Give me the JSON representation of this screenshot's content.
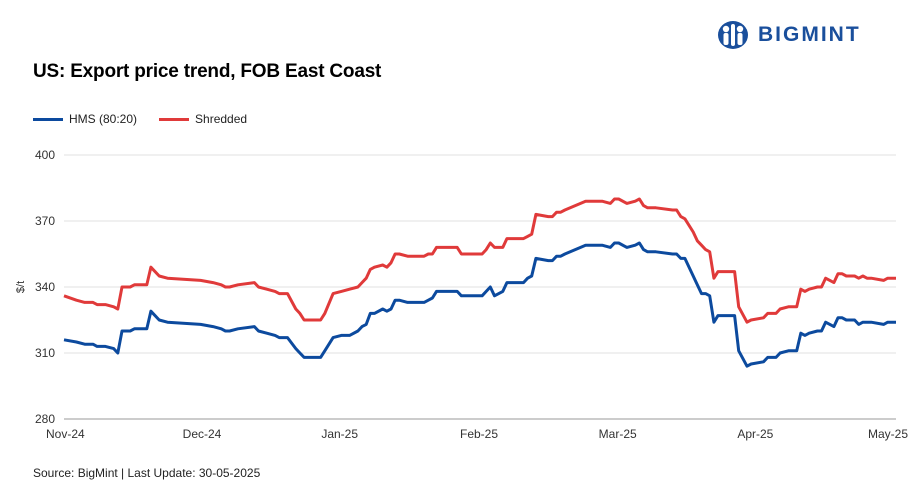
{
  "brand": {
    "name": "BIGMINT",
    "color": "#1a4f9c"
  },
  "chart_data": {
    "type": "line",
    "title": "US: Export price trend, FOB East Coast",
    "ylabel": "$/t",
    "xlabel": "",
    "ylim": [
      280,
      400
    ],
    "yticks": [
      "400",
      "370",
      "340",
      "310",
      "280"
    ],
    "xticks": [
      "Nov-24",
      "Dec-24",
      "Jan-25",
      "Feb-25",
      "Mar-25",
      "Apr-25",
      "May-25"
    ],
    "grid": "horizontal",
    "legend_position": "top-left",
    "series": [
      {
        "name": "HMS (80:20)",
        "color": "#0c4a9e",
        "points": [
          [
            0,
            316
          ],
          [
            3,
            315
          ],
          [
            5,
            314
          ],
          [
            7,
            314
          ],
          [
            8,
            313
          ],
          [
            10,
            313
          ],
          [
            12,
            312
          ],
          [
            13,
            310
          ],
          [
            14,
            320
          ],
          [
            16,
            320
          ],
          [
            17,
            321
          ],
          [
            20,
            321
          ],
          [
            21,
            329
          ],
          [
            23,
            325
          ],
          [
            25,
            324
          ],
          [
            33,
            323
          ],
          [
            36,
            322
          ],
          [
            38,
            321
          ],
          [
            39,
            320
          ],
          [
            40,
            320
          ],
          [
            42,
            321
          ],
          [
            46,
            322
          ],
          [
            47,
            320
          ],
          [
            49,
            319
          ],
          [
            51,
            318
          ],
          [
            52,
            317
          ],
          [
            54,
            317
          ],
          [
            56,
            312
          ],
          [
            57,
            310
          ],
          [
            58,
            308
          ],
          [
            62,
            308
          ],
          [
            63,
            311
          ],
          [
            65,
            317
          ],
          [
            67,
            318
          ],
          [
            69,
            318
          ],
          [
            71,
            320
          ],
          [
            72,
            322
          ],
          [
            73,
            323
          ],
          [
            74,
            328
          ],
          [
            75,
            328
          ],
          [
            77,
            330
          ],
          [
            78,
            329
          ],
          [
            79,
            330
          ],
          [
            80,
            334
          ],
          [
            81,
            334
          ],
          [
            83,
            333
          ],
          [
            85,
            333
          ],
          [
            87,
            333
          ],
          [
            88,
            334
          ],
          [
            89,
            335
          ],
          [
            90,
            338
          ],
          [
            95,
            338
          ],
          [
            96,
            336
          ],
          [
            98,
            336
          ],
          [
            101,
            336
          ],
          [
            102,
            338
          ],
          [
            103,
            340
          ],
          [
            104,
            336
          ],
          [
            106,
            338
          ],
          [
            107,
            342
          ],
          [
            111,
            342
          ],
          [
            112,
            344
          ],
          [
            113,
            345
          ],
          [
            114,
            353
          ],
          [
            117,
            352
          ],
          [
            118,
            352
          ],
          [
            119,
            354
          ],
          [
            120,
            354
          ],
          [
            121,
            355
          ],
          [
            126,
            359
          ],
          [
            129,
            359
          ],
          [
            130,
            359
          ],
          [
            132,
            358
          ],
          [
            133,
            360
          ],
          [
            134,
            360
          ],
          [
            136,
            358
          ],
          [
            138,
            359
          ],
          [
            139,
            360
          ],
          [
            140,
            357
          ],
          [
            141,
            356
          ],
          [
            143,
            356
          ],
          [
            147,
            355
          ],
          [
            148,
            355
          ],
          [
            149,
            353
          ],
          [
            150,
            353
          ],
          [
            152,
            345
          ],
          [
            153,
            341
          ],
          [
            154,
            337
          ],
          [
            155,
            337
          ],
          [
            156,
            336
          ],
          [
            157,
            324
          ],
          [
            158,
            327
          ],
          [
            162,
            327
          ],
          [
            163,
            311
          ],
          [
            165,
            304
          ],
          [
            166,
            305
          ],
          [
            169,
            306
          ],
          [
            170,
            308
          ],
          [
            172,
            308
          ],
          [
            173,
            310
          ],
          [
            175,
            311
          ],
          [
            177,
            311
          ],
          [
            178,
            319
          ],
          [
            179,
            318
          ],
          [
            180,
            319
          ],
          [
            182,
            320
          ],
          [
            183,
            320
          ],
          [
            184,
            324
          ],
          [
            186,
            322
          ],
          [
            187,
            326
          ],
          [
            188,
            326
          ],
          [
            189,
            325
          ],
          [
            191,
            325
          ],
          [
            192,
            323
          ],
          [
            193,
            324
          ],
          [
            194,
            324
          ],
          [
            195,
            324
          ],
          [
            198,
            323
          ],
          [
            199,
            324
          ],
          [
            201,
            324
          ]
        ]
      },
      {
        "name": "Shredded",
        "color": "#e03a3a",
        "points": [
          [
            0,
            336
          ],
          [
            3,
            334
          ],
          [
            5,
            333
          ],
          [
            7,
            333
          ],
          [
            8,
            332
          ],
          [
            10,
            332
          ],
          [
            12,
            331
          ],
          [
            13,
            330
          ],
          [
            14,
            340
          ],
          [
            16,
            340
          ],
          [
            17,
            341
          ],
          [
            20,
            341
          ],
          [
            21,
            349
          ],
          [
            23,
            345
          ],
          [
            25,
            344
          ],
          [
            33,
            343
          ],
          [
            36,
            342
          ],
          [
            38,
            341
          ],
          [
            39,
            340
          ],
          [
            40,
            340
          ],
          [
            42,
            341
          ],
          [
            46,
            342
          ],
          [
            47,
            340
          ],
          [
            49,
            339
          ],
          [
            51,
            338
          ],
          [
            52,
            337
          ],
          [
            54,
            337
          ],
          [
            56,
            330
          ],
          [
            57,
            328
          ],
          [
            58,
            325
          ],
          [
            62,
            325
          ],
          [
            63,
            328
          ],
          [
            65,
            337
          ],
          [
            67,
            338
          ],
          [
            69,
            339
          ],
          [
            71,
            340
          ],
          [
            72,
            342
          ],
          [
            73,
            344
          ],
          [
            74,
            348
          ],
          [
            75,
            349
          ],
          [
            77,
            350
          ],
          [
            78,
            349
          ],
          [
            79,
            351
          ],
          [
            80,
            355
          ],
          [
            81,
            355
          ],
          [
            83,
            354
          ],
          [
            85,
            354
          ],
          [
            87,
            354
          ],
          [
            88,
            355
          ],
          [
            89,
            355
          ],
          [
            90,
            358
          ],
          [
            95,
            358
          ],
          [
            96,
            355
          ],
          [
            98,
            355
          ],
          [
            101,
            355
          ],
          [
            102,
            357
          ],
          [
            103,
            360
          ],
          [
            104,
            358
          ],
          [
            106,
            358
          ],
          [
            107,
            362
          ],
          [
            111,
            362
          ],
          [
            112,
            363
          ],
          [
            113,
            364
          ],
          [
            114,
            373
          ],
          [
            117,
            372
          ],
          [
            118,
            372
          ],
          [
            119,
            374
          ],
          [
            120,
            374
          ],
          [
            121,
            375
          ],
          [
            126,
            379
          ],
          [
            129,
            379
          ],
          [
            130,
            379
          ],
          [
            132,
            378
          ],
          [
            133,
            380
          ],
          [
            134,
            380
          ],
          [
            136,
            378
          ],
          [
            138,
            379
          ],
          [
            139,
            380
          ],
          [
            140,
            377
          ],
          [
            141,
            376
          ],
          [
            143,
            376
          ],
          [
            147,
            375
          ],
          [
            148,
            375
          ],
          [
            149,
            372
          ],
          [
            150,
            371
          ],
          [
            152,
            365
          ],
          [
            153,
            361
          ],
          [
            154,
            359
          ],
          [
            155,
            357
          ],
          [
            156,
            356
          ],
          [
            157,
            344
          ],
          [
            158,
            347
          ],
          [
            162,
            347
          ],
          [
            163,
            331
          ],
          [
            165,
            324
          ],
          [
            166,
            325
          ],
          [
            169,
            326
          ],
          [
            170,
            328
          ],
          [
            172,
            328
          ],
          [
            173,
            330
          ],
          [
            175,
            331
          ],
          [
            177,
            331
          ],
          [
            178,
            339
          ],
          [
            179,
            338
          ],
          [
            180,
            339
          ],
          [
            182,
            340
          ],
          [
            183,
            340
          ],
          [
            184,
            344
          ],
          [
            186,
            342
          ],
          [
            187,
            346
          ],
          [
            188,
            346
          ],
          [
            189,
            345
          ],
          [
            191,
            345
          ],
          [
            192,
            344
          ],
          [
            193,
            345
          ],
          [
            194,
            344
          ],
          [
            195,
            344
          ],
          [
            198,
            343
          ],
          [
            199,
            344
          ],
          [
            201,
            344
          ]
        ]
      }
    ]
  },
  "source_text": "Source: BigMint | Last Update: 30-05-2025"
}
